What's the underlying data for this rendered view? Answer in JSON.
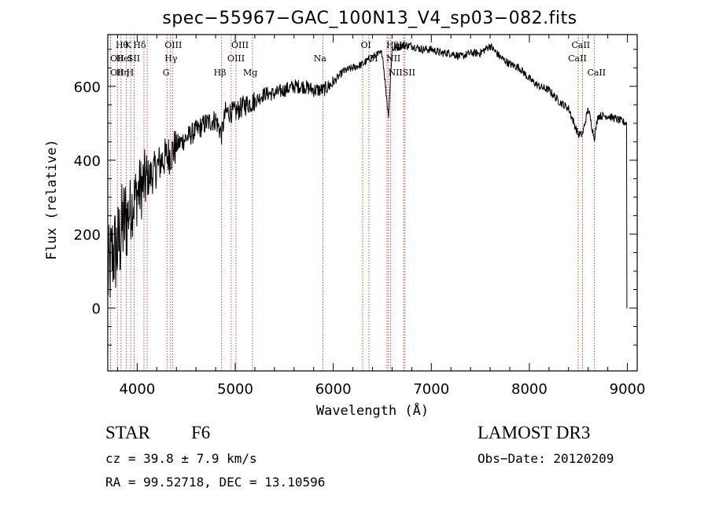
{
  "chart_data": {
    "type": "line",
    "title": "spec−55967−GAC_100N13_V4_sp03−082.fits",
    "xlabel": "Wavelength (Å)",
    "ylabel": "Flux (relative)",
    "xlim": [
      3700,
      9100
    ],
    "ylim": [
      -170,
      740
    ],
    "xticks": [
      4000,
      5000,
      6000,
      7000,
      8000,
      9000
    ],
    "yticks": [
      0,
      200,
      400,
      600
    ],
    "grid": false,
    "series": [
      {
        "name": "flux",
        "x": [
          3700,
          3750,
          3800,
          3850,
          3900,
          3950,
          4000,
          4050,
          4100,
          4150,
          4200,
          4250,
          4300,
          4350,
          4400,
          4450,
          4500,
          4600,
          4700,
          4800,
          4861,
          4900,
          5000,
          5100,
          5200,
          5300,
          5400,
          5500,
          5600,
          5700,
          5800,
          5900,
          6000,
          6100,
          6200,
          6300,
          6400,
          6500,
          6563,
          6600,
          6700,
          6800,
          6900,
          7000,
          7100,
          7200,
          7300,
          7400,
          7500,
          7600,
          7700,
          7800,
          7900,
          8000,
          8100,
          8200,
          8300,
          8400,
          8498,
          8542,
          8600,
          8662,
          8700,
          8800,
          8900,
          8990,
          9000
        ],
        "values": [
          80,
          150,
          160,
          220,
          250,
          280,
          310,
          330,
          350,
          360,
          380,
          400,
          410,
          420,
          440,
          450,
          460,
          480,
          500,
          510,
          470,
          530,
          530,
          550,
          560,
          580,
          580,
          590,
          600,
          600,
          590,
          590,
          610,
          640,
          650,
          660,
          680,
          690,
          520,
          700,
          710,
          710,
          700,
          700,
          690,
          690,
          680,
          690,
          690,
          710,
          680,
          660,
          650,
          620,
          600,
          590,
          560,
          540,
          470,
          470,
          540,
          460,
          520,
          520,
          510,
          500,
          0
        ]
      }
    ],
    "lines": [
      {
        "name": "Hθ",
        "x": 3798
      },
      {
        "name": "OII",
        "x": 3727
      },
      {
        "name": "OII",
        "x": 3729
      },
      {
        "name": "Hη",
        "x": 3835
      },
      {
        "name": "K",
        "x": 3934
      },
      {
        "name": "H",
        "x": 3968
      },
      {
        "name": "HeI",
        "x": 3889
      },
      {
        "name": "SII",
        "x": 4069
      },
      {
        "name": "Hδ",
        "x": 4102
      },
      {
        "name": "OIII",
        "x": 4363
      },
      {
        "name": "Hγ",
        "x": 4340
      },
      {
        "name": "G",
        "x": 4304
      },
      {
        "name": "Hβ",
        "x": 4861
      },
      {
        "name": "OIII",
        "x": 4959
      },
      {
        "name": "OIII",
        "x": 5007
      },
      {
        "name": "Mg",
        "x": 5175
      },
      {
        "name": "Na",
        "x": 5894
      },
      {
        "name": "OI",
        "x": 6300
      },
      {
        "name": "OI",
        "x": 6364
      },
      {
        "name": "Hα",
        "x": 6563
      },
      {
        "name": "NII",
        "x": 6548
      },
      {
        "name": "NII",
        "x": 6584
      },
      {
        "name": "SII",
        "x": 6717
      },
      {
        "name": "SII",
        "x": 6731
      },
      {
        "name": "CaII",
        "x": 8498
      },
      {
        "name": "CaII",
        "x": 8542
      },
      {
        "name": "CaII",
        "x": 8662
      }
    ],
    "line_labels": [
      {
        "text": "Hθ",
        "x": 3780,
        "row": 1
      },
      {
        "text": "K",
        "x": 3875,
        "row": 1
      },
      {
        "text": "Hδ",
        "x": 3960,
        "row": 1
      },
      {
        "text": "OIII",
        "x": 4280,
        "row": 1
      },
      {
        "text": "OIII",
        "x": 4960,
        "row": 1
      },
      {
        "text": "OI",
        "x": 6280,
        "row": 1
      },
      {
        "text": "Hα",
        "x": 6540,
        "row": 1
      },
      {
        "text": "SII",
        "x": 6610,
        "row": 1
      },
      {
        "text": "CaII",
        "x": 8430,
        "row": 1
      },
      {
        "text": "OII",
        "x": 3725,
        "row": 2
      },
      {
        "text": "HeI",
        "x": 3785,
        "row": 2
      },
      {
        "text": "SII",
        "x": 3900,
        "row": 2
      },
      {
        "text": "Hγ",
        "x": 4280,
        "row": 2
      },
      {
        "text": "OIII",
        "x": 4920,
        "row": 2
      },
      {
        "text": "Na",
        "x": 5800,
        "row": 2
      },
      {
        "text": "OI",
        "x": 6350,
        "row": 2
      },
      {
        "text": "NII",
        "x": 6540,
        "row": 2
      },
      {
        "text": "CaII",
        "x": 8395,
        "row": 2
      },
      {
        "text": "OII",
        "x": 3725,
        "row": 3
      },
      {
        "text": "Hη",
        "x": 3785,
        "row": 3
      },
      {
        "text": "H",
        "x": 3890,
        "row": 3
      },
      {
        "text": "G",
        "x": 4260,
        "row": 3
      },
      {
        "text": "Hβ",
        "x": 4780,
        "row": 3
      },
      {
        "text": "Mg",
        "x": 5080,
        "row": 3
      },
      {
        "text": "NIISII",
        "x": 6560,
        "row": 3
      },
      {
        "text": "CaII",
        "x": 8590,
        "row": 3
      }
    ]
  },
  "info": {
    "class_label": "STAR",
    "subclass": "F6",
    "survey": "LAMOST DR3",
    "cz": "cz = 39.8 ± 7.9 km/s",
    "obs_date": "Obs−Date: 20120209",
    "radec": "RA =  99.52718, DEC =  13.10596"
  }
}
